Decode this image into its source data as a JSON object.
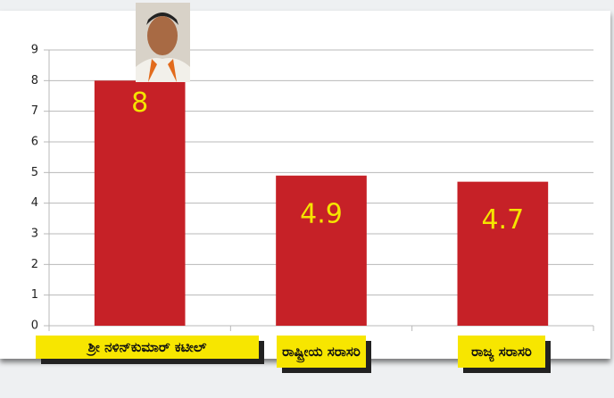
{
  "chart_data": {
    "type": "bar",
    "categories": [
      "ಶ್ರೀ ನಳಿನ್‌ಕುಮಾರ್ ಕಟೀಲ್",
      "ರಾಷ್ಟ್ರೀಯ ಸರಾಸರಿ",
      "ರಾಜ್ಯ ಸರಾಸರಿ"
    ],
    "values": [
      8,
      4.9,
      4.7
    ],
    "color": "#c62127",
    "label_color": "#f5e400",
    "ylim": [
      0,
      9
    ],
    "yticks": [
      0,
      1,
      2,
      3,
      4,
      5,
      6,
      7,
      8,
      9
    ],
    "grid": true
  }
}
